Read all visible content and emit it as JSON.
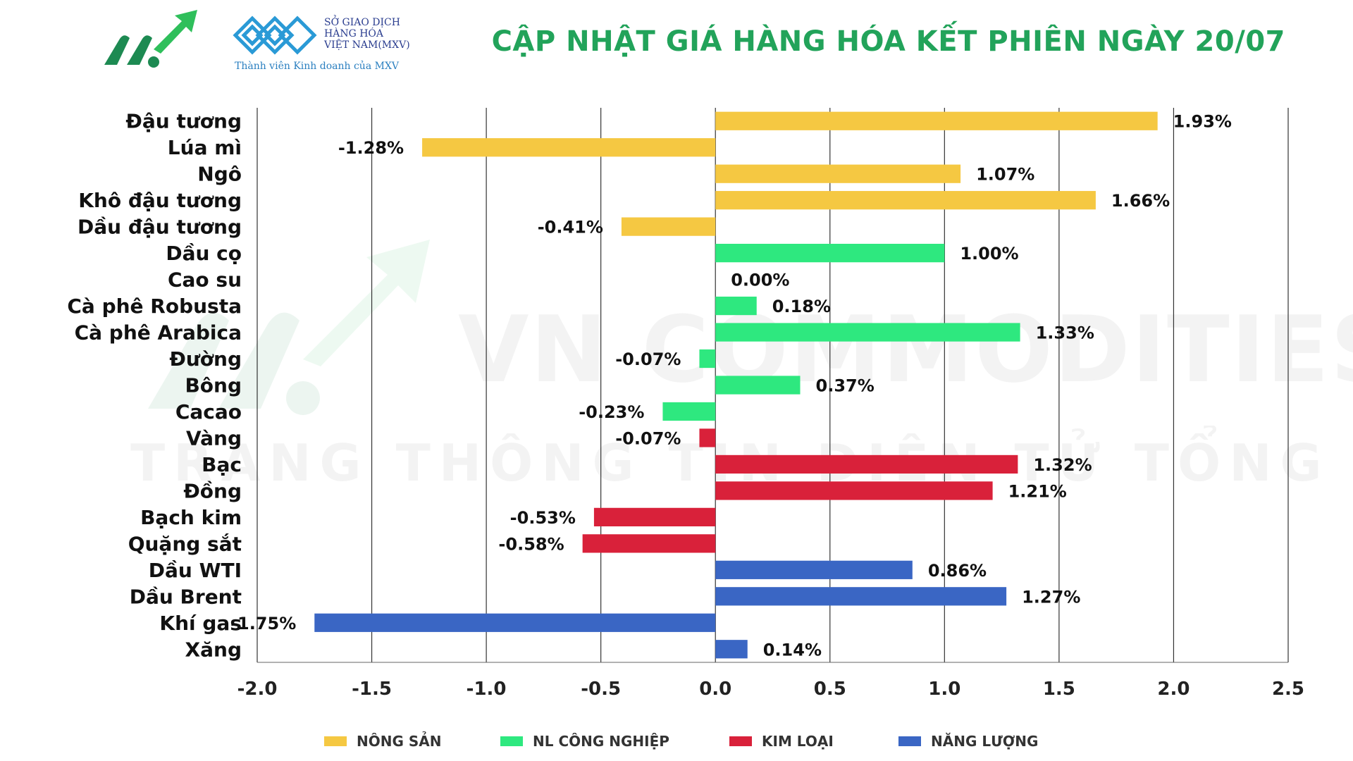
{
  "header": {
    "title": "CẬP NHẬT GIÁ HÀNG HÓA KẾT PHIÊN NGÀY 20/07",
    "exchange_name_line1": "SỞ GIAO DỊCH",
    "exchange_name_line2": "HÀNG HÓA",
    "exchange_name_line3": "VIỆT NAM(MXV)",
    "member_text": "Thành viên Kinh doanh của MXV",
    "tm_mark": "™"
  },
  "watermark": {
    "line1": "VN COMMODITIES",
    "line2": "TRANG THÔNG TIN ĐIỆN TỬ TỔNG HỢP"
  },
  "colors": {
    "title": "#22a35a",
    "nong_san": "#f5c842",
    "nl_cong_nghiep": "#2ee87f",
    "kim_loai": "#d9213a",
    "nang_luong": "#3a66c4"
  },
  "chart_data": {
    "type": "bar",
    "orientation": "horizontal",
    "title": "CẬP NHẬT GIÁ HÀNG HÓA KẾT PHIÊN NGÀY 20/07",
    "xlabel": "",
    "ylabel": "",
    "xlim": [
      -2.0,
      2.5
    ],
    "xticks": [
      -2.0,
      -1.5,
      -1.0,
      -0.5,
      0.0,
      0.5,
      1.0,
      1.5,
      2.0,
      2.5
    ],
    "xtick_labels": [
      "-2.0",
      "-1.5",
      "-1.0",
      "-0.5",
      "0.0",
      "0.5",
      "1.0",
      "1.5",
      "2.0",
      "2.5"
    ],
    "grid": "vertical",
    "legend_position": "bottom",
    "categories": [
      "Đậu tương",
      "Lúa mì",
      "Ngô",
      "Khô đậu tương",
      "Dầu đậu tương",
      "Dầu cọ",
      "Cao su",
      "Cà phê Robusta",
      "Cà phê Arabica",
      "Đường",
      "Bông",
      "Cacao",
      "Vàng",
      "Bạc",
      "Đồng",
      "Bạch kim",
      "Quặng sắt",
      "Dầu WTI",
      "Dầu Brent",
      "Khí gas",
      "Xăng"
    ],
    "values": [
      1.93,
      -1.28,
      1.07,
      1.66,
      -0.41,
      1.0,
      0.0,
      0.18,
      1.33,
      -0.07,
      0.37,
      -0.23,
      -0.07,
      1.32,
      1.21,
      -0.53,
      -0.58,
      0.86,
      1.27,
      -1.75,
      0.14
    ],
    "value_labels": [
      "1.93%",
      "-1.28%",
      "1.07%",
      "1.66%",
      "-0.41%",
      "1.00%",
      "0.00%",
      "0.18%",
      "1.33%",
      "-0.07%",
      "0.37%",
      "-0.23%",
      "-0.07%",
      "1.32%",
      "1.21%",
      "-0.53%",
      "-0.58%",
      "0.86%",
      "1.27%",
      "-1.75%",
      "0.14%"
    ],
    "groups": [
      "nong_san",
      "nong_san",
      "nong_san",
      "nong_san",
      "nong_san",
      "nl_cong_nghiep",
      "nl_cong_nghiep",
      "nl_cong_nghiep",
      "nl_cong_nghiep",
      "nl_cong_nghiep",
      "nl_cong_nghiep",
      "nl_cong_nghiep",
      "kim_loai",
      "kim_loai",
      "kim_loai",
      "kim_loai",
      "kim_loai",
      "nang_luong",
      "nang_luong",
      "nang_luong",
      "nang_luong"
    ],
    "legend": [
      {
        "key": "nong_san",
        "label": "NÔNG SẢN"
      },
      {
        "key": "nl_cong_nghiep",
        "label": "NL CÔNG NGHIỆP"
      },
      {
        "key": "kim_loai",
        "label": "KIM LOẠI"
      },
      {
        "key": "nang_luong",
        "label": "NĂNG LƯỢNG"
      }
    ]
  }
}
